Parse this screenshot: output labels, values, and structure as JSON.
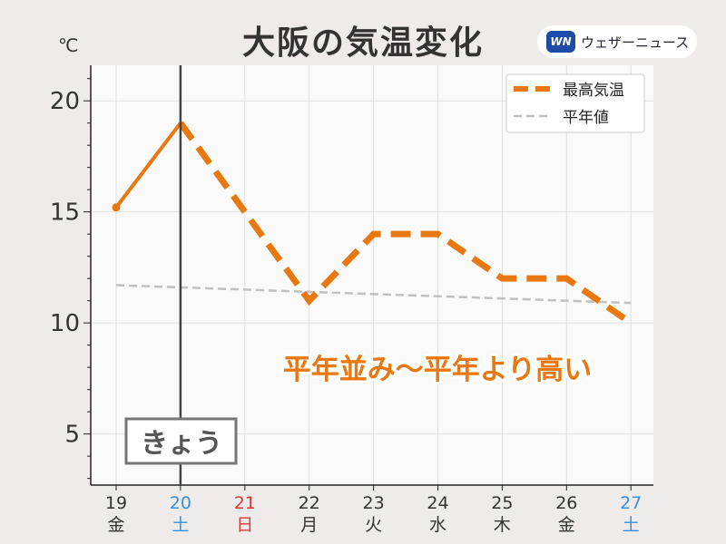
{
  "title": "大阪の気温変化",
  "unit_label": "℃",
  "logo": {
    "mark": "WN",
    "text": "ウェザーニュース"
  },
  "annotation": "平年並み〜平年より高い",
  "today_label": "きょう",
  "colors": {
    "background": "#efebea",
    "plot_bg": "#fbfafa",
    "max_temp": "#e8780f",
    "normal": "#c0c0c0",
    "today_line": "#444444",
    "weekday": "#333333",
    "saturday": "#3a8fd9",
    "sunday": "#d93a3a"
  },
  "chart_data": {
    "type": "line",
    "title": "大阪の気温変化",
    "ylabel": "℃",
    "ylim": [
      2.7,
      21.6
    ],
    "yticks": [
      5,
      10,
      15,
      20
    ],
    "grid": true,
    "legend_position": "top-right",
    "categories": [
      {
        "date": "19",
        "day": "金",
        "kind": "weekday"
      },
      {
        "date": "20",
        "day": "土",
        "kind": "saturday"
      },
      {
        "date": "21",
        "day": "日",
        "kind": "sunday"
      },
      {
        "date": "22",
        "day": "月",
        "kind": "weekday"
      },
      {
        "date": "23",
        "day": "火",
        "kind": "weekday"
      },
      {
        "date": "24",
        "day": "水",
        "kind": "weekday"
      },
      {
        "date": "25",
        "day": "木",
        "kind": "weekday"
      },
      {
        "date": "26",
        "day": "金",
        "kind": "weekday"
      },
      {
        "date": "27",
        "day": "土",
        "kind": "saturday"
      }
    ],
    "today_index": 1,
    "series": [
      {
        "name": "最高気温",
        "values": [
          15.2,
          19,
          15,
          11,
          14,
          14,
          12,
          12,
          10
        ],
        "observed_until_index": 1
      },
      {
        "name": "平年値",
        "values": [
          11.7,
          11.6,
          11.5,
          11.4,
          11.3,
          11.2,
          11.1,
          11.0,
          10.9
        ]
      }
    ]
  }
}
